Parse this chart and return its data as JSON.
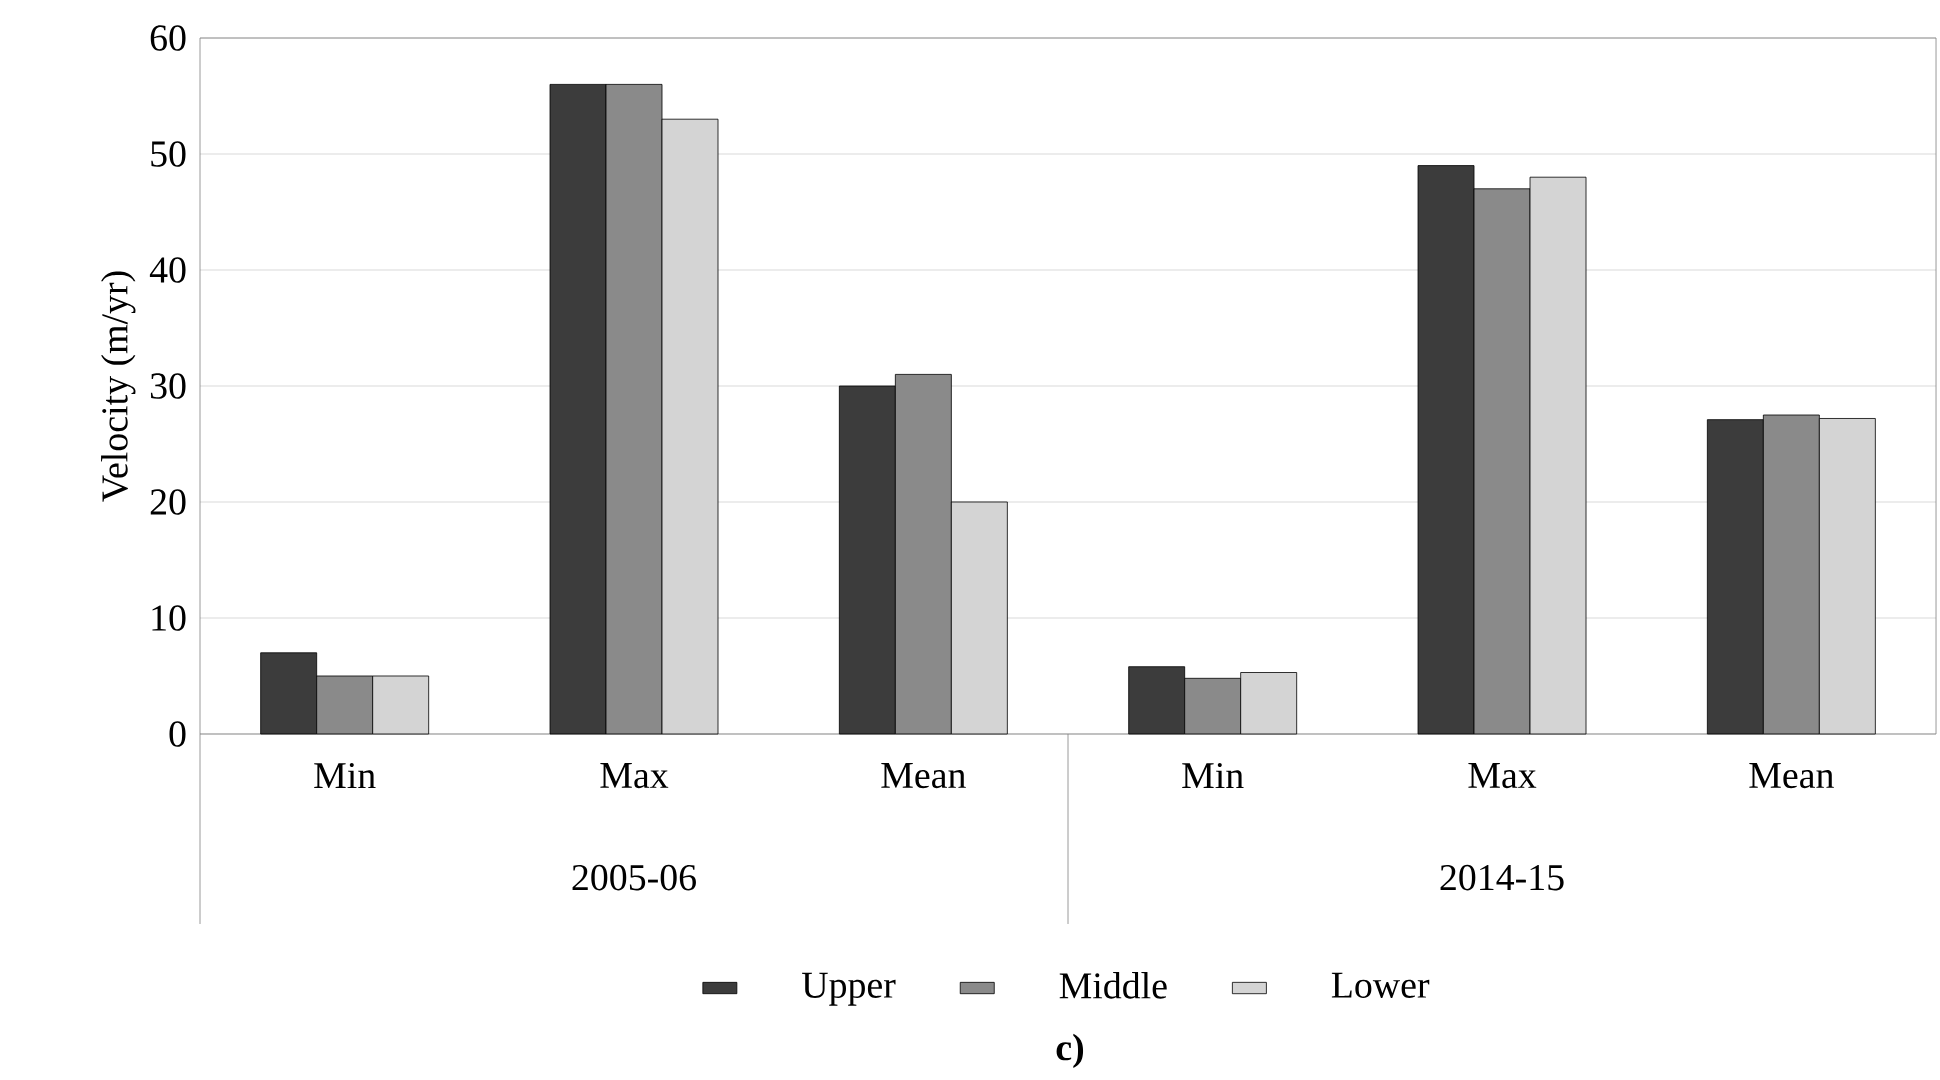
{
  "chart_data": {
    "type": "bar",
    "title": "c)",
    "ylabel": "Velocity (m/yr)",
    "categories": [
      "Min",
      "Max",
      "Mean",
      "Min",
      "Max",
      "Mean"
    ],
    "annotations": [
      "2005-06",
      "2014-15"
    ],
    "series": [
      {
        "name": "Upper",
        "color": "#3c3c3c",
        "values": [
          7,
          56,
          30,
          5.8,
          49,
          27.1
        ]
      },
      {
        "name": "Middle",
        "color": "#8a8a8a",
        "values": [
          5,
          56,
          31,
          4.8,
          47,
          27.5
        ]
      },
      {
        "name": "Lower",
        "color": "#d4d4d4",
        "values": [
          5,
          53,
          20,
          5.3,
          48,
          27.2
        ]
      }
    ],
    "ylim": [
      0,
      60
    ],
    "yticks": [
      0,
      10,
      20,
      30,
      40,
      50,
      60
    ],
    "grid": "y",
    "legend": "bottom"
  }
}
